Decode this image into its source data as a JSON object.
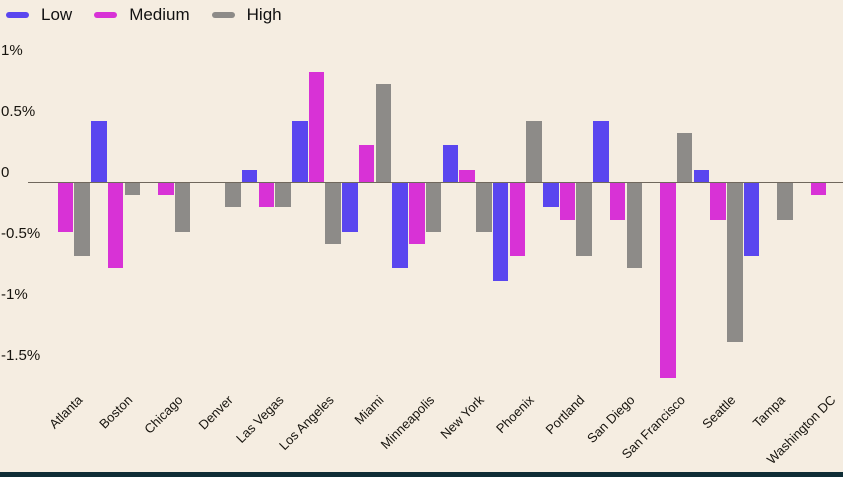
{
  "background_color": "#F5EDE1",
  "axis_line_color": "#6F675C",
  "text_color": "#17140E",
  "footer_strip_color": "#0F2D36",
  "legend": {
    "position": "top-left",
    "items": [
      {
        "label": "Low",
        "color": "#5A46EF",
        "swatch": "rounded-dash"
      },
      {
        "label": "Medium",
        "color": "#D832D6",
        "swatch": "rounded-dash"
      },
      {
        "label": "High",
        "color": "#8D8B88",
        "swatch": "rounded-dash"
      }
    ]
  },
  "chart_data": {
    "type": "bar",
    "title": "",
    "xlabel": "",
    "ylabel": "",
    "unit": "%",
    "grid": false,
    "legend_position": "top-left",
    "ylim": [
      -1.75,
      1.1
    ],
    "y_ticks": [
      {
        "label": "1%",
        "value": 1.0
      },
      {
        "label": "0.5%",
        "value": 0.5
      },
      {
        "label": "0",
        "value": 0.0
      },
      {
        "label": "-0.5%",
        "value": -0.5
      },
      {
        "label": "-1%",
        "value": -1.0
      },
      {
        "label": "-1.5%",
        "value": -1.5
      }
    ],
    "categories": [
      "Atlanta",
      "Boston",
      "Chicago",
      "Denver",
      "Las Vegas",
      "Los Angeles",
      "Miami",
      "Minneapolis",
      "New York",
      "Phoenix",
      "Portland",
      "San Diego",
      "San Francisco",
      "Seattle",
      "Tampa",
      "Washington DC"
    ],
    "series": [
      {
        "name": "Low",
        "color": "#5A46EF",
        "values": [
          0,
          0.5,
          0,
          0,
          0.1,
          0.5,
          -0.4,
          -0.7,
          0.3,
          -0.8,
          -0.2,
          0.5,
          0,
          0.1,
          -0.6,
          0
        ]
      },
      {
        "name": "Medium",
        "color": "#D832D6",
        "values": [
          -0.4,
          -0.7,
          -0.1,
          0,
          -0.2,
          0.9,
          0.3,
          -0.5,
          0.1,
          -0.6,
          -0.3,
          -0.3,
          -1.6,
          -0.3,
          0,
          -0.1
        ]
      },
      {
        "name": "High",
        "color": "#8D8B88",
        "values": [
          -0.6,
          -0.1,
          -0.4,
          -0.2,
          -0.2,
          -0.5,
          0.8,
          -0.4,
          -0.4,
          0.5,
          -0.6,
          -0.7,
          0.4,
          -1.3,
          -0.3,
          0
        ]
      }
    ]
  }
}
